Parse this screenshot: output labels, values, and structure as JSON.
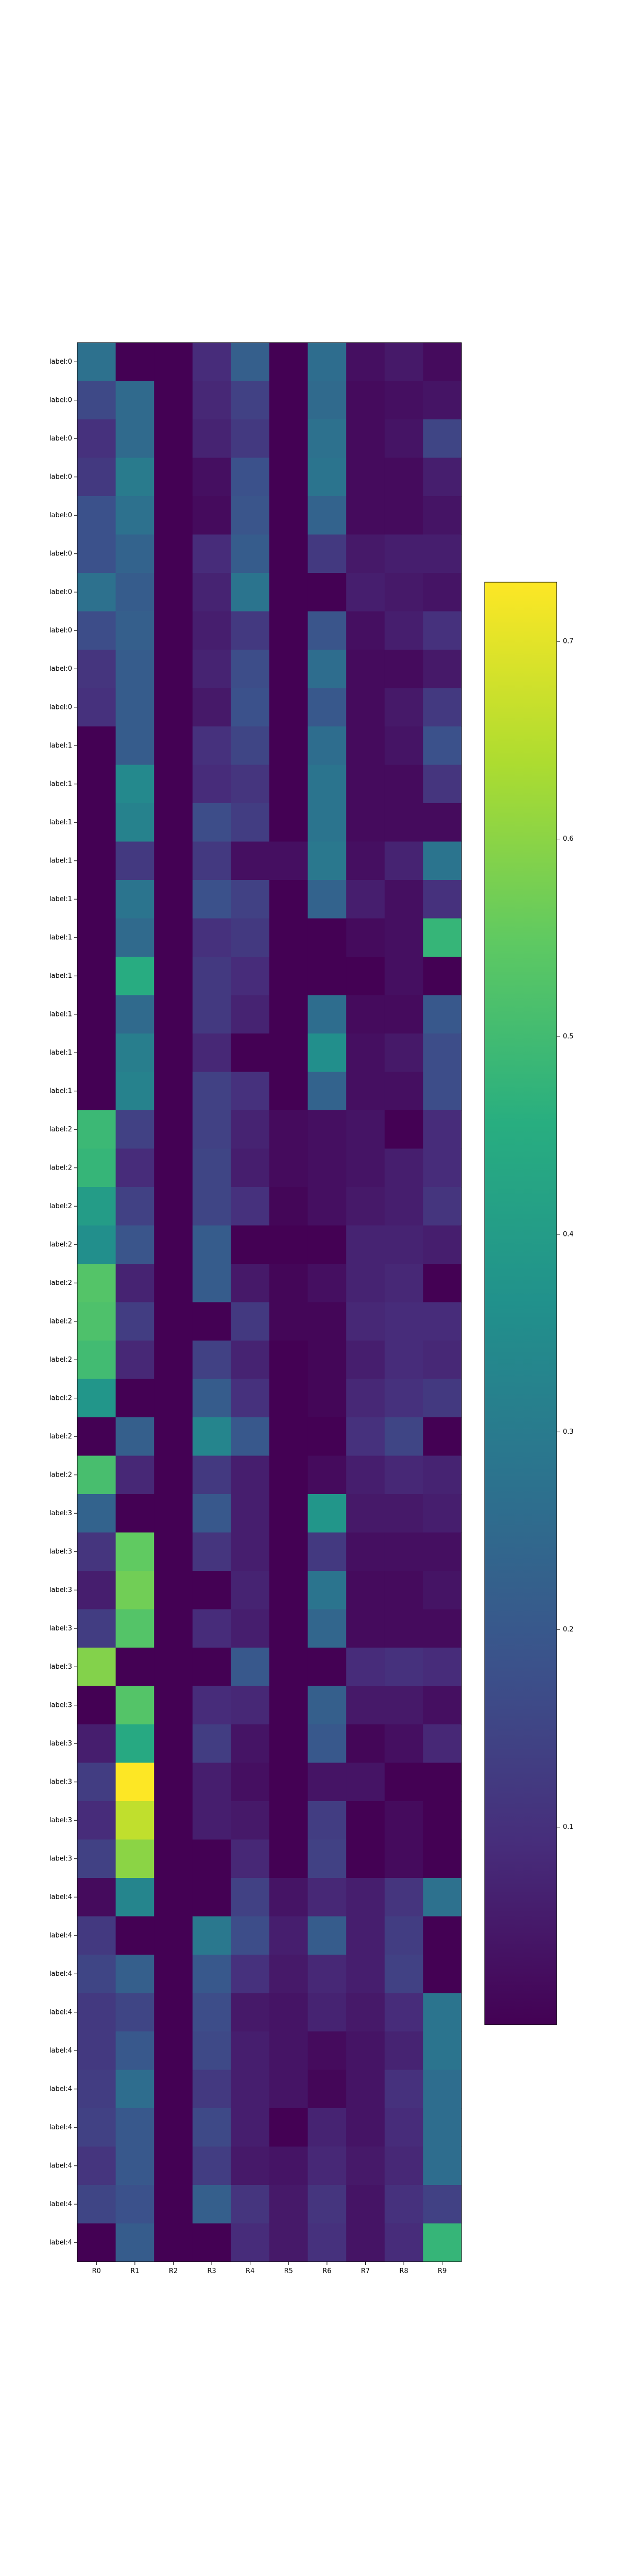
{
  "chart_data": {
    "type": "heatmap",
    "title": "",
    "xlabel": "",
    "ylabel": "",
    "columns": [
      "R0",
      "R1",
      "R2",
      "R3",
      "R4",
      "R5",
      "R6",
      "R7",
      "R8",
      "R9"
    ],
    "rows": [
      "label:0",
      "label:0",
      "label:0",
      "label:0",
      "label:0",
      "label:0",
      "label:0",
      "label:0",
      "label:0",
      "label:0",
      "label:1",
      "label:1",
      "label:1",
      "label:1",
      "label:1",
      "label:1",
      "label:1",
      "label:1",
      "label:1",
      "label:1",
      "label:2",
      "label:2",
      "label:2",
      "label:2",
      "label:2",
      "label:2",
      "label:2",
      "label:2",
      "label:2",
      "label:2",
      "label:3",
      "label:3",
      "label:3",
      "label:3",
      "label:3",
      "label:3",
      "label:3",
      "label:3",
      "label:3",
      "label:3",
      "label:4",
      "label:4",
      "label:4",
      "label:4",
      "label:4",
      "label:4",
      "label:4",
      "label:4",
      "label:4",
      "label:4"
    ],
    "values": [
      [
        0.27,
        0.0,
        0.0,
        0.09,
        0.22,
        0.0,
        0.26,
        0.03,
        0.05,
        0.02
      ],
      [
        0.16,
        0.25,
        0.0,
        0.08,
        0.14,
        0.0,
        0.25,
        0.02,
        0.03,
        0.04
      ],
      [
        0.1,
        0.25,
        0.0,
        0.07,
        0.12,
        0.0,
        0.27,
        0.02,
        0.04,
        0.15
      ],
      [
        0.12,
        0.3,
        0.0,
        0.03,
        0.18,
        0.0,
        0.28,
        0.02,
        0.02,
        0.06
      ],
      [
        0.18,
        0.27,
        0.0,
        0.02,
        0.19,
        0.0,
        0.23,
        0.02,
        0.02,
        0.04
      ],
      [
        0.18,
        0.23,
        0.0,
        0.09,
        0.21,
        0.0,
        0.12,
        0.05,
        0.06,
        0.06
      ],
      [
        0.27,
        0.21,
        0.0,
        0.07,
        0.28,
        0.0,
        0.0,
        0.06,
        0.05,
        0.04
      ],
      [
        0.17,
        0.22,
        0.0,
        0.06,
        0.12,
        0.0,
        0.19,
        0.03,
        0.06,
        0.1
      ],
      [
        0.11,
        0.21,
        0.0,
        0.07,
        0.17,
        0.0,
        0.26,
        0.02,
        0.02,
        0.05
      ],
      [
        0.1,
        0.21,
        0.0,
        0.05,
        0.18,
        0.0,
        0.2,
        0.02,
        0.05,
        0.12
      ],
      [
        0.0,
        0.21,
        0.0,
        0.1,
        0.15,
        0.0,
        0.26,
        0.02,
        0.04,
        0.18
      ],
      [
        0.0,
        0.34,
        0.0,
        0.09,
        0.11,
        0.0,
        0.28,
        0.02,
        0.02,
        0.11
      ],
      [
        0.0,
        0.32,
        0.0,
        0.17,
        0.13,
        0.0,
        0.28,
        0.02,
        0.02,
        0.02
      ],
      [
        0.0,
        0.12,
        0.0,
        0.12,
        0.03,
        0.03,
        0.29,
        0.03,
        0.07,
        0.28
      ],
      [
        0.0,
        0.28,
        0.0,
        0.18,
        0.14,
        0.0,
        0.23,
        0.06,
        0.03,
        0.1
      ],
      [
        0.0,
        0.25,
        0.0,
        0.1,
        0.12,
        0.0,
        0.0,
        0.02,
        0.03,
        0.48
      ],
      [
        0.0,
        0.45,
        0.0,
        0.12,
        0.09,
        0.0,
        0.0,
        0.0,
        0.03,
        0.0
      ],
      [
        0.0,
        0.25,
        0.0,
        0.12,
        0.07,
        0.0,
        0.26,
        0.02,
        0.02,
        0.2
      ],
      [
        0.0,
        0.31,
        0.0,
        0.08,
        0.0,
        0.0,
        0.36,
        0.03,
        0.05,
        0.17
      ],
      [
        0.0,
        0.32,
        0.0,
        0.14,
        0.1,
        0.0,
        0.23,
        0.03,
        0.03,
        0.17
      ],
      [
        0.49,
        0.14,
        0.0,
        0.14,
        0.07,
        0.02,
        0.03,
        0.04,
        0.0,
        0.09
      ],
      [
        0.48,
        0.09,
        0.0,
        0.15,
        0.06,
        0.02,
        0.03,
        0.04,
        0.06,
        0.09
      ],
      [
        0.4,
        0.14,
        0.0,
        0.15,
        0.1,
        0.01,
        0.03,
        0.05,
        0.06,
        0.11
      ],
      [
        0.36,
        0.19,
        0.0,
        0.21,
        0.0,
        0.0,
        0.0,
        0.07,
        0.07,
        0.06
      ],
      [
        0.53,
        0.07,
        0.0,
        0.21,
        0.05,
        0.01,
        0.03,
        0.07,
        0.08,
        0.0
      ],
      [
        0.52,
        0.13,
        0.0,
        0.0,
        0.12,
        0.01,
        0.01,
        0.08,
        0.09,
        0.09
      ],
      [
        0.5,
        0.08,
        0.0,
        0.14,
        0.07,
        0.0,
        0.01,
        0.06,
        0.09,
        0.08
      ],
      [
        0.38,
        0.0,
        0.0,
        0.21,
        0.1,
        0.0,
        0.01,
        0.08,
        0.1,
        0.12
      ],
      [
        0.0,
        0.22,
        0.0,
        0.33,
        0.2,
        0.0,
        0.0,
        0.1,
        0.15,
        0.0
      ],
      [
        0.51,
        0.08,
        0.0,
        0.12,
        0.06,
        0.0,
        0.02,
        0.06,
        0.08,
        0.07
      ],
      [
        0.23,
        0.0,
        0.0,
        0.2,
        0.06,
        0.0,
        0.38,
        0.05,
        0.05,
        0.06
      ],
      [
        0.11,
        0.55,
        0.0,
        0.11,
        0.06,
        0.0,
        0.12,
        0.03,
        0.03,
        0.03
      ],
      [
        0.06,
        0.57,
        0.0,
        0.0,
        0.07,
        0.0,
        0.28,
        0.02,
        0.02,
        0.04
      ],
      [
        0.13,
        0.53,
        0.0,
        0.09,
        0.06,
        0.0,
        0.24,
        0.02,
        0.02,
        0.02
      ],
      [
        0.59,
        0.0,
        0.0,
        0.0,
        0.2,
        0.0,
        0.0,
        0.09,
        0.1,
        0.09
      ],
      [
        0.0,
        0.53,
        0.0,
        0.09,
        0.08,
        0.0,
        0.22,
        0.05,
        0.05,
        0.03
      ],
      [
        0.06,
        0.44,
        0.0,
        0.13,
        0.04,
        0.0,
        0.2,
        0.01,
        0.03,
        0.08
      ],
      [
        0.13,
        0.73,
        0.0,
        0.06,
        0.03,
        0.0,
        0.04,
        0.04,
        0.0,
        0.0
      ],
      [
        0.09,
        0.66,
        0.0,
        0.06,
        0.05,
        0.0,
        0.13,
        0.0,
        0.02,
        0.0
      ],
      [
        0.14,
        0.6,
        0.0,
        0.0,
        0.08,
        0.0,
        0.14,
        0.0,
        0.02,
        0.0
      ],
      [
        0.02,
        0.33,
        0.0,
        0.0,
        0.14,
        0.04,
        0.08,
        0.06,
        0.11,
        0.27
      ],
      [
        0.12,
        0.0,
        0.0,
        0.29,
        0.17,
        0.06,
        0.21,
        0.06,
        0.13,
        0.0
      ],
      [
        0.15,
        0.22,
        0.0,
        0.2,
        0.1,
        0.05,
        0.08,
        0.06,
        0.14,
        0.0
      ],
      [
        0.12,
        0.15,
        0.0,
        0.17,
        0.05,
        0.04,
        0.07,
        0.05,
        0.09,
        0.28
      ],
      [
        0.12,
        0.2,
        0.0,
        0.16,
        0.06,
        0.04,
        0.02,
        0.04,
        0.07,
        0.28
      ],
      [
        0.13,
        0.26,
        0.0,
        0.12,
        0.06,
        0.04,
        0.01,
        0.04,
        0.1,
        0.26
      ],
      [
        0.14,
        0.2,
        0.0,
        0.16,
        0.06,
        0.0,
        0.07,
        0.04,
        0.09,
        0.26
      ],
      [
        0.11,
        0.2,
        0.0,
        0.13,
        0.05,
        0.04,
        0.08,
        0.05,
        0.08,
        0.26
      ],
      [
        0.15,
        0.18,
        0.0,
        0.22,
        0.11,
        0.05,
        0.11,
        0.04,
        0.1,
        0.14
      ],
      [
        0.0,
        0.21,
        0.0,
        0.0,
        0.09,
        0.05,
        0.1,
        0.04,
        0.09,
        0.48
      ]
    ],
    "colorbar": {
      "colormap": "viridis",
      "vmin": 0,
      "vmax": 0.73,
      "ticks": [
        0.1,
        0.2,
        0.3,
        0.4,
        0.5,
        0.6,
        0.7
      ],
      "tick_labels": [
        "0.1",
        "0.2",
        "0.3",
        "0.4",
        "0.5",
        "0.6",
        "0.7"
      ]
    },
    "legend": "colorbar-right",
    "grid": false
  }
}
